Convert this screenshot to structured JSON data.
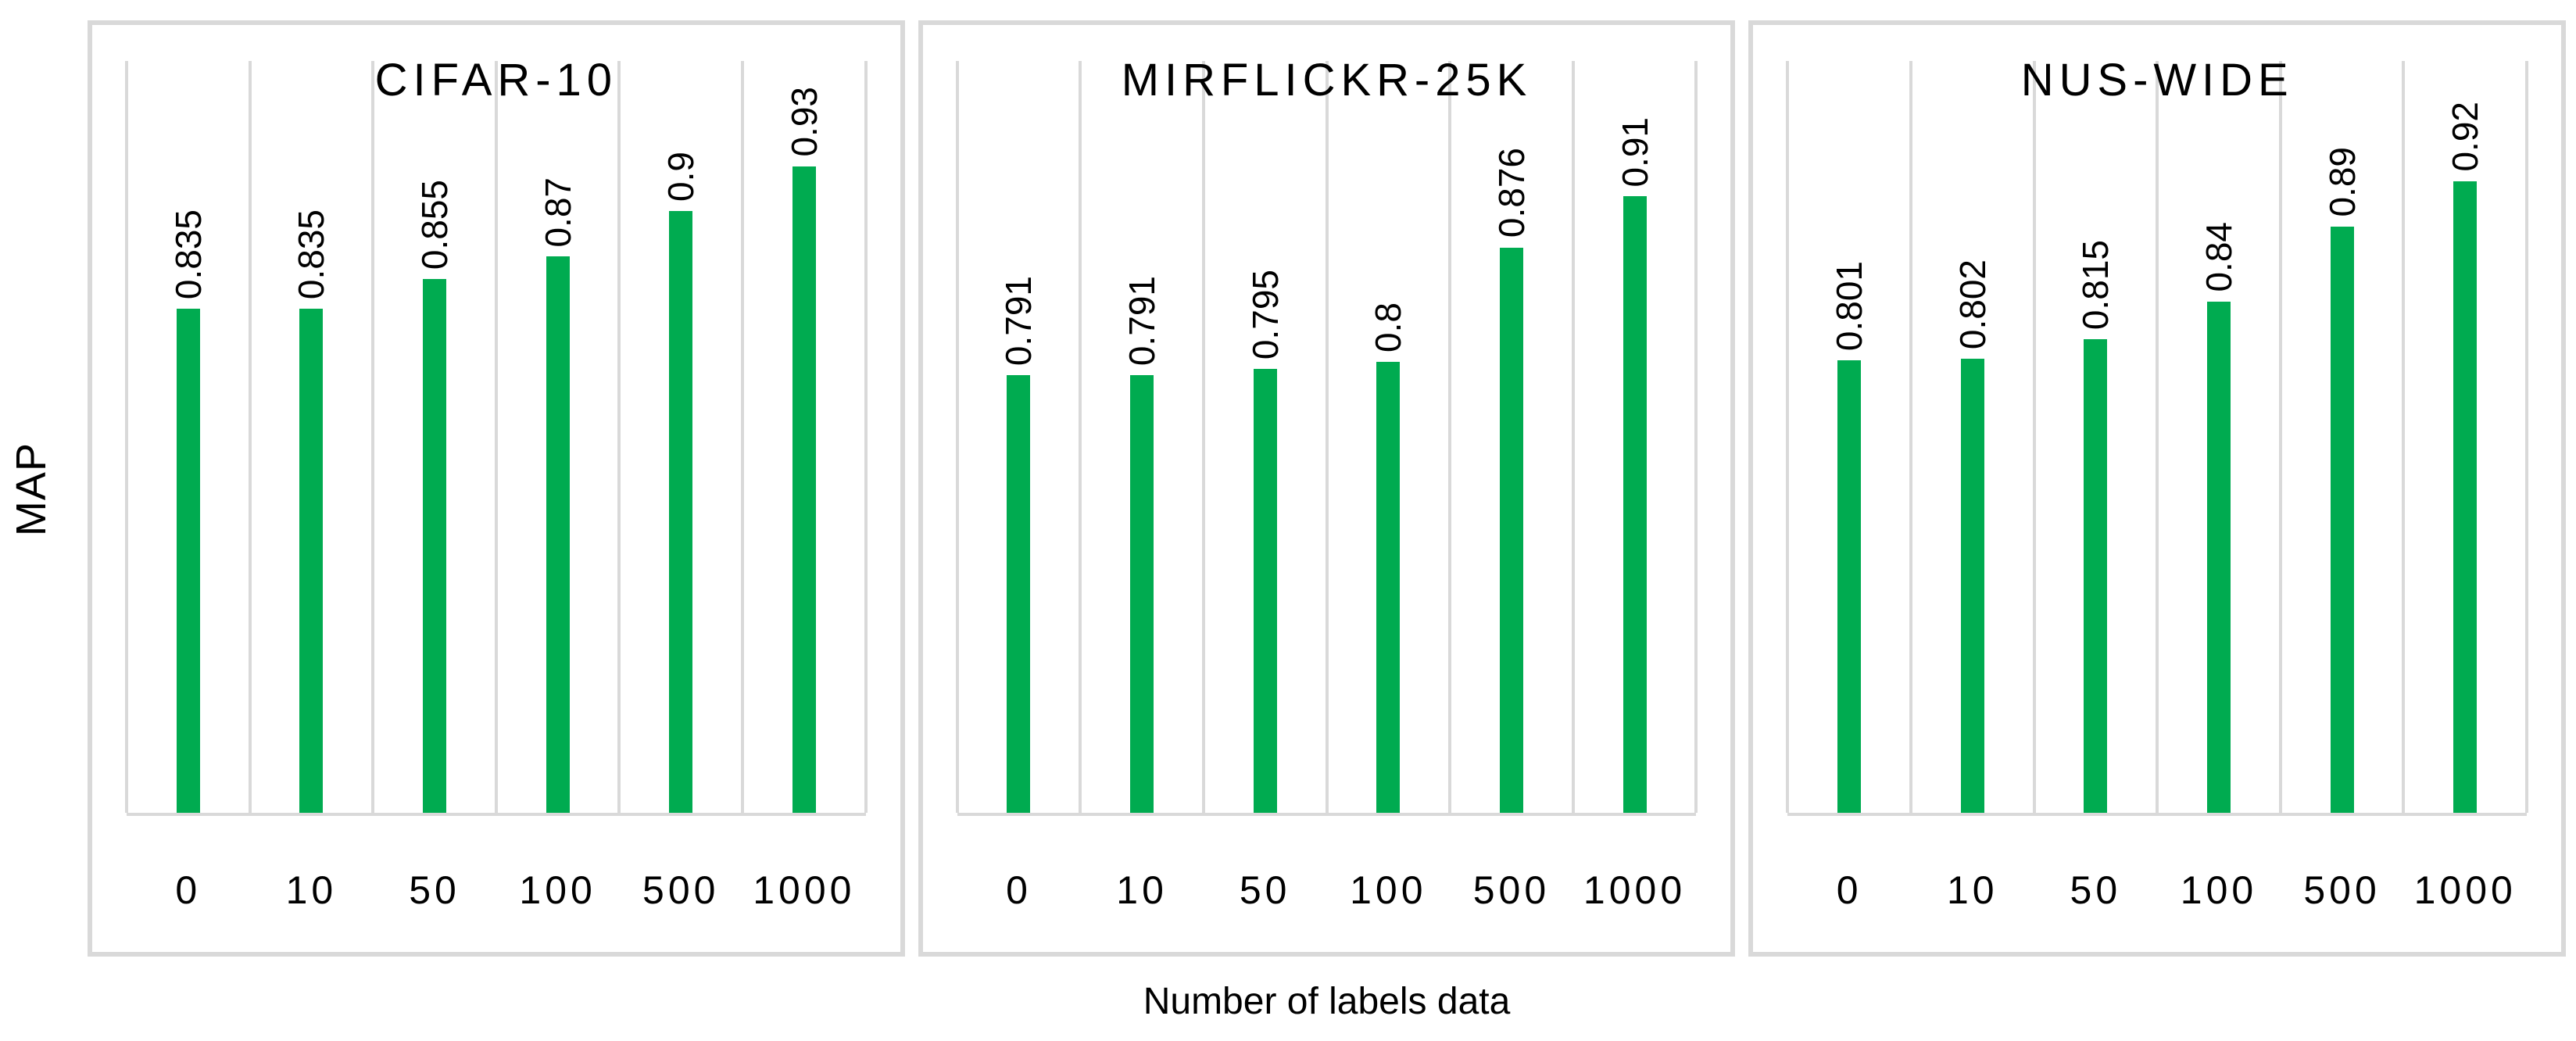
{
  "figure": {
    "y_axis_label": "MAP",
    "x_axis_label": "Number of labels data",
    "colors": {
      "bar": "#00AB50",
      "grid": "#D9D9D9",
      "text": "#000000"
    }
  },
  "chart_data": [
    {
      "type": "bar",
      "title": "CIFAR-10",
      "categories": [
        "0",
        "10",
        "50",
        "100",
        "500",
        "1000"
      ],
      "values": [
        0.835,
        0.835,
        0.855,
        0.87,
        0.9,
        0.93
      ],
      "value_labels": [
        "0.835",
        "0.835",
        "0.855",
        "0.87",
        "0.9",
        "0.93"
      ],
      "xlabel": "Number of labels data",
      "ylabel": "MAP",
      "ylim": [
        0.5,
        1.0
      ],
      "grid": "vertical",
      "legend": "none",
      "bar_color": "#00AB50"
    },
    {
      "type": "bar",
      "title": "MIRFLICKR-25K",
      "categories": [
        "0",
        "10",
        "50",
        "100",
        "500",
        "1000"
      ],
      "values": [
        0.791,
        0.791,
        0.795,
        0.8,
        0.876,
        0.91
      ],
      "value_labels": [
        "0.791",
        "0.791",
        "0.795",
        "0.8",
        "0.876",
        "0.91"
      ],
      "xlabel": "Number of labels data",
      "ylabel": "MAP",
      "ylim": [
        0.5,
        1.0
      ],
      "grid": "vertical",
      "legend": "none",
      "bar_color": "#00AB50"
    },
    {
      "type": "bar",
      "title": "NUS-WIDE",
      "categories": [
        "0",
        "10",
        "50",
        "100",
        "500",
        "1000"
      ],
      "values": [
        0.801,
        0.802,
        0.815,
        0.84,
        0.89,
        0.92
      ],
      "value_labels": [
        "0.801",
        "0.802",
        "0.815",
        "0.84",
        "0.89",
        "0.92"
      ],
      "xlabel": "Number of labels data",
      "ylabel": "MAP",
      "ylim": [
        0.5,
        1.0
      ],
      "grid": "vertical",
      "legend": "none",
      "bar_color": "#00AB50"
    }
  ]
}
